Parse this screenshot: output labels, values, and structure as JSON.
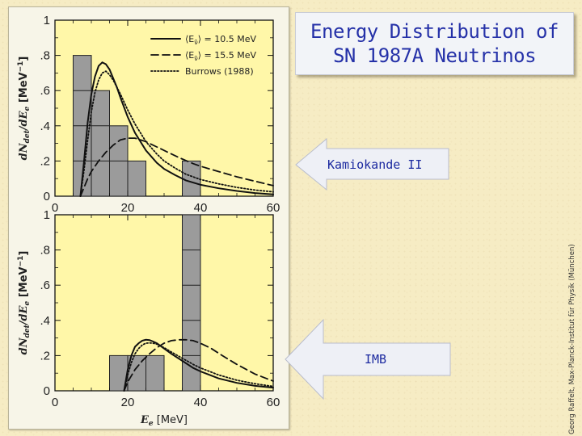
{
  "slide": {
    "title_line1": "Energy Distribution of",
    "title_line2": "SN 1987A Neutrinos",
    "arrow_kamiokande": "Kamiokande II",
    "arrow_imb": "IMB",
    "credit": "Georg Raffelt, Max-Planck-Institut für Physik (München)",
    "colors": {
      "title": "#2531a8",
      "plot_bg": "#fff7a8",
      "bar": "#9b9b9b",
      "arrow_fill": "#eef0f6"
    }
  },
  "chart_data": [
    {
      "type": "bar",
      "panel": "top",
      "xlim": [
        0,
        60
      ],
      "ylim": [
        0,
        1
      ],
      "x_ticks": [
        0,
        20,
        40,
        60
      ],
      "x_tick_labels": [
        "0",
        "20",
        "40",
        "60"
      ],
      "y_ticks": [
        0,
        0.2,
        0.4,
        0.6,
        0.8,
        1
      ],
      "y_tick_labels": [
        "0",
        ".2",
        ".4",
        ".6",
        ".8",
        "1"
      ],
      "ylabel_main": "dN",
      "ylabel_sub1": "det",
      "ylabel_mid": "/dE",
      "ylabel_sub2": "e",
      "ylabel_unit": "[MeV",
      "ylabel_exp": "−1",
      "ylabel_close": "]",
      "bar_width": 5,
      "bars": [
        {
          "x0": 5,
          "x1": 10,
          "value": 0.8
        },
        {
          "x0": 10,
          "x1": 15,
          "value": 0.6
        },
        {
          "x0": 15,
          "x1": 20,
          "value": 0.4
        },
        {
          "x0": 20,
          "x1": 25,
          "value": 0.2
        },
        {
          "x0": 35,
          "x1": 40,
          "value": 0.2
        }
      ],
      "legend": [
        {
          "label_pre": "⟨E",
          "label_sub": "ν̄",
          "label_post": "⟩ = 10.5 MeV",
          "style": "solid"
        },
        {
          "label_pre": "⟨E",
          "label_sub": "ν̄",
          "label_post": "⟩ = 15.5 MeV",
          "style": "dashed"
        },
        {
          "label_pre": "Burrows (1988)",
          "label_sub": "",
          "label_post": "",
          "style": "dotted"
        }
      ],
      "series": [
        {
          "style": "solid",
          "x": [
            7,
            8,
            9,
            10,
            11,
            12,
            13,
            14,
            15,
            16,
            17,
            18,
            20,
            22,
            25,
            28,
            30,
            33,
            36,
            40,
            45,
            50,
            55,
            60
          ],
          "y": [
            0,
            0.2,
            0.42,
            0.58,
            0.68,
            0.74,
            0.76,
            0.75,
            0.72,
            0.67,
            0.62,
            0.56,
            0.45,
            0.36,
            0.26,
            0.19,
            0.155,
            0.12,
            0.09,
            0.065,
            0.045,
            0.03,
            0.018,
            0.01
          ]
        },
        {
          "style": "dashed",
          "x": [
            7,
            8,
            9,
            10,
            12,
            14,
            16,
            18,
            20,
            22,
            25,
            28,
            30,
            34,
            38,
            40,
            45,
            50,
            55,
            60
          ],
          "y": [
            0,
            0.05,
            0.1,
            0.14,
            0.2,
            0.25,
            0.29,
            0.32,
            0.33,
            0.33,
            0.31,
            0.28,
            0.26,
            0.22,
            0.185,
            0.17,
            0.14,
            0.11,
            0.085,
            0.06
          ]
        },
        {
          "style": "dotted",
          "x": [
            7,
            8,
            9,
            10,
            11,
            12,
            13,
            14,
            15,
            16,
            18,
            20,
            22,
            25,
            28,
            30,
            33,
            36,
            40,
            45,
            50,
            55,
            60
          ],
          "y": [
            0,
            0.15,
            0.32,
            0.48,
            0.59,
            0.66,
            0.7,
            0.71,
            0.69,
            0.66,
            0.58,
            0.49,
            0.41,
            0.31,
            0.24,
            0.2,
            0.16,
            0.125,
            0.095,
            0.07,
            0.05,
            0.035,
            0.025
          ]
        }
      ]
    },
    {
      "type": "bar",
      "panel": "bottom",
      "xlim": [
        0,
        60
      ],
      "ylim": [
        0,
        1
      ],
      "x_ticks": [
        0,
        20,
        40,
        60
      ],
      "x_tick_labels": [
        "0",
        "20",
        "40",
        "60"
      ],
      "y_ticks": [
        0,
        0.2,
        0.4,
        0.6,
        0.8,
        1
      ],
      "y_tick_labels": [
        "0",
        ".2",
        ".4",
        ".6",
        ".8",
        "1"
      ],
      "xlabel_main": "E",
      "xlabel_sub": "e",
      "xlabel_unit": "[MeV]",
      "ylabel_main": "dN",
      "ylabel_sub1": "det",
      "ylabel_mid": "/dE",
      "ylabel_sub2": "e",
      "ylabel_unit": "[MeV",
      "ylabel_exp": "−1",
      "ylabel_close": "]",
      "bar_width": 5,
      "bars": [
        {
          "x0": 15,
          "x1": 20,
          "value": 0.2
        },
        {
          "x0": 20,
          "x1": 25,
          "value": 0.2
        },
        {
          "x0": 25,
          "x1": 30,
          "value": 0.2
        },
        {
          "x0": 35,
          "x1": 40,
          "value": 1.0
        }
      ],
      "series": [
        {
          "style": "solid",
          "x": [
            19,
            20,
            21,
            22,
            23,
            24,
            25,
            26,
            27,
            28,
            30,
            32,
            35,
            38,
            40,
            45,
            50,
            55,
            60
          ],
          "y": [
            0,
            0.12,
            0.2,
            0.25,
            0.27,
            0.285,
            0.29,
            0.288,
            0.28,
            0.27,
            0.24,
            0.21,
            0.17,
            0.13,
            0.11,
            0.07,
            0.045,
            0.028,
            0.018
          ]
        },
        {
          "style": "dashed",
          "x": [
            19,
            20,
            22,
            24,
            26,
            28,
            30,
            32,
            34,
            36,
            38,
            40,
            43,
            46,
            50,
            55,
            60
          ],
          "y": [
            0,
            0.05,
            0.12,
            0.17,
            0.21,
            0.245,
            0.27,
            0.285,
            0.29,
            0.29,
            0.285,
            0.27,
            0.24,
            0.2,
            0.15,
            0.095,
            0.055
          ]
        },
        {
          "style": "dotted",
          "x": [
            19,
            20,
            21,
            22,
            23,
            24,
            25,
            26,
            27,
            28,
            30,
            32,
            35,
            38,
            40,
            45,
            50,
            55,
            60
          ],
          "y": [
            0,
            0.09,
            0.16,
            0.21,
            0.24,
            0.26,
            0.27,
            0.272,
            0.27,
            0.265,
            0.245,
            0.22,
            0.185,
            0.15,
            0.13,
            0.09,
            0.06,
            0.04,
            0.025
          ]
        }
      ]
    }
  ]
}
